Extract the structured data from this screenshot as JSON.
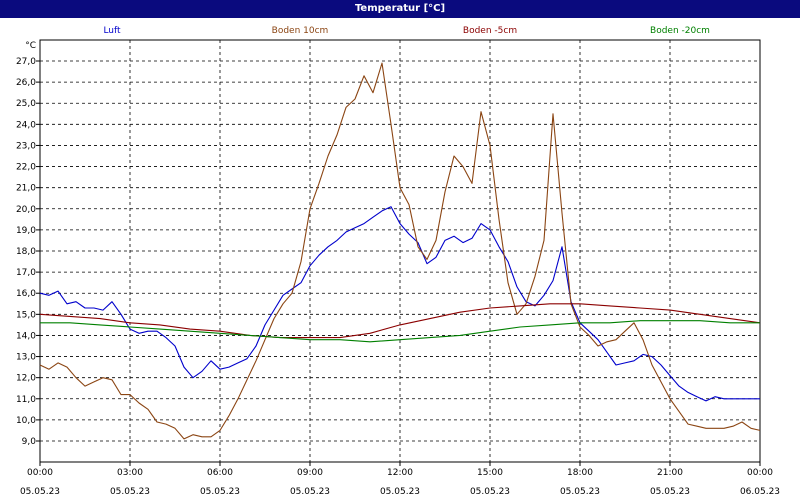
{
  "window": {
    "title": "Temperatur [°C]"
  },
  "chart_data": {
    "type": "line",
    "title": "Temperatur [°C]",
    "ylabel": "°C",
    "ylim": [
      8.5,
      28.0
    ],
    "xlim": [
      0,
      24
    ],
    "grid": true,
    "legend_position": "top",
    "yticks": [
      "9,0",
      "10,0",
      "11,0",
      "12,0",
      "13,0",
      "14,0",
      "15,0",
      "16,0",
      "17,0",
      "18,0",
      "19,0",
      "20,0",
      "21,0",
      "22,0",
      "23,0",
      "24,0",
      "25,0",
      "26,0",
      "27,0"
    ],
    "ytick_values": [
      9,
      10,
      11,
      12,
      13,
      14,
      15,
      16,
      17,
      18,
      19,
      20,
      21,
      22,
      23,
      24,
      25,
      26,
      27
    ],
    "xticks": [
      {
        "pos": 0,
        "time": "00:00",
        "date": "05.05.23"
      },
      {
        "pos": 3,
        "time": "03:00",
        "date": "05.05.23"
      },
      {
        "pos": 6,
        "time": "06:00",
        "date": "05.05.23"
      },
      {
        "pos": 9,
        "time": "09:00",
        "date": "05.05.23"
      },
      {
        "pos": 12,
        "time": "12:00",
        "date": "05.05.23"
      },
      {
        "pos": 15,
        "time": "15:00",
        "date": "05.05.23"
      },
      {
        "pos": 18,
        "time": "18:00",
        "date": "05.05.23"
      },
      {
        "pos": 21,
        "time": "21:00",
        "date": "05.05.23"
      },
      {
        "pos": 24,
        "time": "00:00",
        "date": "06.05.23"
      }
    ],
    "series": [
      {
        "name": "Luft",
        "color": "#0000cc",
        "x": [
          0,
          0.3,
          0.6,
          0.9,
          1.2,
          1.5,
          1.8,
          2.1,
          2.4,
          2.7,
          3.0,
          3.3,
          3.6,
          3.9,
          4.2,
          4.5,
          4.8,
          5.1,
          5.4,
          5.7,
          6.0,
          6.3,
          6.6,
          6.9,
          7.2,
          7.5,
          7.8,
          8.1,
          8.4,
          8.7,
          9.0,
          9.3,
          9.6,
          9.9,
          10.2,
          10.5,
          10.8,
          11.1,
          11.4,
          11.7,
          12.0,
          12.3,
          12.6,
          12.9,
          13.2,
          13.5,
          13.8,
          14.1,
          14.4,
          14.7,
          15.0,
          15.3,
          15.6,
          15.9,
          16.2,
          16.5,
          16.8,
          17.1,
          17.4,
          17.7,
          18.0,
          18.3,
          18.6,
          18.9,
          19.2,
          19.5,
          19.8,
          20.1,
          20.4,
          20.7,
          21.0,
          21.3,
          21.6,
          21.9,
          22.2,
          22.5,
          22.8,
          23.1,
          23.4,
          23.7,
          24.0
        ],
        "y": [
          16.0,
          15.9,
          16.1,
          15.5,
          15.6,
          15.3,
          15.3,
          15.2,
          15.6,
          15.0,
          14.3,
          14.1,
          14.2,
          14.2,
          13.9,
          13.5,
          12.5,
          12.0,
          12.3,
          12.8,
          12.4,
          12.5,
          12.7,
          12.9,
          13.5,
          14.5,
          15.2,
          15.9,
          16.2,
          16.5,
          17.3,
          17.8,
          18.2,
          18.5,
          18.9,
          19.1,
          19.3,
          19.6,
          19.9,
          20.1,
          19.3,
          18.8,
          18.4,
          17.4,
          17.7,
          18.5,
          18.7,
          18.4,
          18.6,
          19.3,
          19.0,
          18.2,
          17.5,
          16.3,
          15.6,
          15.4,
          15.9,
          16.6,
          18.2,
          15.6,
          14.6,
          14.2,
          13.8,
          13.2,
          12.6,
          12.7,
          12.8,
          13.1,
          13.0,
          12.6,
          12.1,
          11.6,
          11.3,
          11.1,
          10.9,
          11.1,
          11.0,
          11.0,
          11.0,
          11.0,
          11.0
        ]
      },
      {
        "name": "Boden 10cm",
        "color": "#8b4513",
        "x": [
          0,
          0.3,
          0.6,
          0.9,
          1.2,
          1.5,
          1.8,
          2.1,
          2.4,
          2.7,
          3.0,
          3.3,
          3.6,
          3.9,
          4.2,
          4.5,
          4.8,
          5.1,
          5.4,
          5.7,
          6.0,
          6.3,
          6.6,
          6.9,
          7.2,
          7.5,
          7.8,
          8.1,
          8.4,
          8.7,
          9.0,
          9.3,
          9.6,
          9.9,
          10.2,
          10.5,
          10.8,
          11.1,
          11.4,
          11.7,
          12.0,
          12.3,
          12.6,
          12.9,
          13.2,
          13.5,
          13.8,
          14.1,
          14.4,
          14.7,
          15.0,
          15.3,
          15.6,
          15.9,
          16.2,
          16.5,
          16.8,
          17.1,
          17.4,
          17.7,
          18.0,
          18.3,
          18.6,
          18.9,
          19.2,
          19.5,
          19.8,
          20.1,
          20.4,
          20.7,
          21.0,
          21.3,
          21.6,
          21.9,
          22.2,
          22.5,
          22.8,
          23.1,
          23.4,
          23.7,
          24.0
        ],
        "y": [
          12.6,
          12.4,
          12.7,
          12.5,
          12.0,
          11.6,
          11.8,
          12.0,
          11.9,
          11.2,
          11.2,
          10.8,
          10.5,
          9.9,
          9.8,
          9.6,
          9.1,
          9.3,
          9.2,
          9.2,
          9.5,
          10.2,
          11.0,
          11.9,
          12.8,
          13.8,
          14.8,
          15.5,
          16.0,
          17.5,
          20.0,
          21.2,
          22.5,
          23.5,
          24.8,
          25.2,
          26.3,
          25.5,
          26.9,
          24.0,
          21.0,
          20.2,
          18.2,
          17.6,
          18.5,
          20.8,
          22.5,
          22.0,
          21.2,
          24.6,
          23.0,
          19.5,
          16.5,
          15.0,
          15.5,
          16.8,
          18.5,
          24.5,
          19.8,
          15.5,
          14.4,
          14.0,
          13.5,
          13.7,
          13.8,
          14.2,
          14.6,
          13.8,
          12.6,
          11.8,
          11.0,
          10.4,
          9.8,
          9.7,
          9.6,
          9.6,
          9.6,
          9.7,
          9.9,
          9.6,
          9.5
        ]
      },
      {
        "name": "Boden -5cm",
        "color": "#8b0000",
        "x": [
          0,
          1,
          2,
          3,
          4,
          5,
          6,
          7,
          8,
          9,
          10,
          11,
          12,
          13,
          14,
          15,
          16,
          17,
          18,
          19,
          20,
          21,
          22,
          23,
          24
        ],
        "y": [
          15.0,
          14.9,
          14.8,
          14.6,
          14.5,
          14.3,
          14.2,
          14.0,
          13.9,
          13.9,
          13.9,
          14.1,
          14.5,
          14.8,
          15.1,
          15.3,
          15.4,
          15.5,
          15.5,
          15.4,
          15.3,
          15.2,
          15.0,
          14.8,
          14.6
        ]
      },
      {
        "name": "Boden -20cm",
        "color": "#008000",
        "x": [
          0,
          1,
          2,
          3,
          4,
          5,
          6,
          7,
          8,
          9,
          10,
          11,
          12,
          13,
          14,
          15,
          16,
          17,
          18,
          19,
          20,
          21,
          22,
          23,
          24
        ],
        "y": [
          14.6,
          14.6,
          14.5,
          14.4,
          14.3,
          14.2,
          14.1,
          14.0,
          13.9,
          13.8,
          13.8,
          13.7,
          13.8,
          13.9,
          14.0,
          14.2,
          14.4,
          14.5,
          14.6,
          14.6,
          14.7,
          14.7,
          14.7,
          14.6,
          14.6
        ]
      }
    ]
  }
}
